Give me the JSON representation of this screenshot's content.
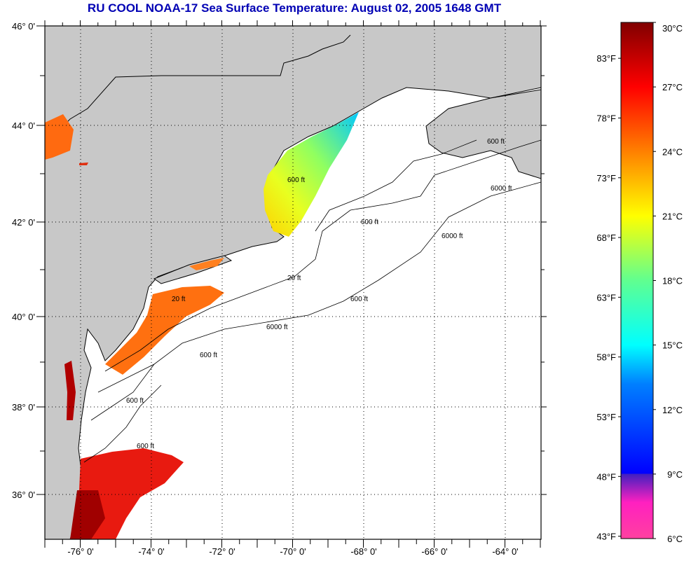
{
  "title": "RU COOL  NOAA-17  Sea Surface Temperature:  August 02, 2005 1648 GMT",
  "map": {
    "lon_labels": [
      "-76° 0'",
      "-74° 0'",
      "-72° 0'",
      "-70° 0'",
      "-68° 0'",
      "-66° 0'",
      "-64° 0'"
    ],
    "lat_labels": [
      "46° 0'",
      "44° 0'",
      "42° 0'",
      "40° 0'",
      "38° 0'",
      "36° 0'"
    ],
    "contour_labels": [
      "600 ft",
      "600 ft",
      "600 ft",
      "6000 ft",
      "6000 ft",
      "600 ft",
      "20 ft",
      "20 ft",
      "6000 ft",
      "600 ft",
      "600 ft",
      "600 ft"
    ],
    "colors": {
      "land": "#c8c8c8",
      "ocean_nodata": "#ffffff"
    }
  },
  "colorbar": {
    "celsius_labels": [
      "30°C",
      "27°C",
      "24°C",
      "21°C",
      "18°C",
      "15°C",
      "12°C",
      "9°C",
      "6°C"
    ],
    "fahrenheit_labels": [
      "83°F",
      "78°F",
      "73°F",
      "68°F",
      "63°F",
      "58°F",
      "53°F",
      "48°F",
      "43°F"
    ],
    "range_celsius": [
      6,
      30
    ]
  }
}
